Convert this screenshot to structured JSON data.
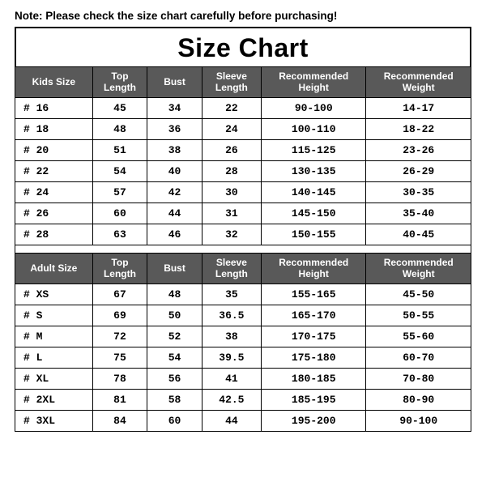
{
  "note": "Note: Please check the size chart carefully before purchasing!",
  "title": "Size Chart",
  "columns_kids": [
    "Kids Size",
    "Top Length",
    "Bust",
    "Sleeve Length",
    "Recommended Height",
    "Recommended Weight"
  ],
  "columns_adult": [
    "Adult Size",
    "Top Length",
    "Bust",
    "Sleeve Length",
    "Recommended Height",
    "Recommended Weight"
  ],
  "kids_rows": [
    {
      "size": "# 16",
      "top": "45",
      "bust": "34",
      "sleeve": "22",
      "height": "90-100",
      "weight": "14-17"
    },
    {
      "size": "# 18",
      "top": "48",
      "bust": "36",
      "sleeve": "24",
      "height": "100-110",
      "weight": "18-22"
    },
    {
      "size": "# 20",
      "top": "51",
      "bust": "38",
      "sleeve": "26",
      "height": "115-125",
      "weight": "23-26"
    },
    {
      "size": "# 22",
      "top": "54",
      "bust": "40",
      "sleeve": "28",
      "height": "130-135",
      "weight": "26-29"
    },
    {
      "size": "# 24",
      "top": "57",
      "bust": "42",
      "sleeve": "30",
      "height": "140-145",
      "weight": "30-35"
    },
    {
      "size": "# 26",
      "top": "60",
      "bust": "44",
      "sleeve": "31",
      "height": "145-150",
      "weight": "35-40"
    },
    {
      "size": "# 28",
      "top": "63",
      "bust": "46",
      "sleeve": "32",
      "height": "150-155",
      "weight": "40-45"
    }
  ],
  "adult_rows": [
    {
      "size": "# XS",
      "top": "67",
      "bust": "48",
      "sleeve": "35",
      "height": "155-165",
      "weight": "45-50"
    },
    {
      "size": "# S",
      "top": "69",
      "bust": "50",
      "sleeve": "36.5",
      "height": "165-170",
      "weight": "50-55"
    },
    {
      "size": "# M",
      "top": "72",
      "bust": "52",
      "sleeve": "38",
      "height": "170-175",
      "weight": "55-60"
    },
    {
      "size": "# L",
      "top": "75",
      "bust": "54",
      "sleeve": "39.5",
      "height": "175-180",
      "weight": "60-70"
    },
    {
      "size": "# XL",
      "top": "78",
      "bust": "56",
      "sleeve": "41",
      "height": "180-185",
      "weight": "70-80"
    },
    {
      "size": "# 2XL",
      "top": "81",
      "bust": "58",
      "sleeve": "42.5",
      "height": "185-195",
      "weight": "80-90"
    },
    {
      "size": "# 3XL",
      "top": "84",
      "bust": "60",
      "sleeve": "44",
      "height": "195-200",
      "weight": "90-100"
    }
  ],
  "style": {
    "header_bg": "#595959",
    "header_fg": "#ffffff",
    "border_color": "#000000",
    "background": "#ffffff",
    "title_fontsize": 32,
    "note_fontsize": 13.5,
    "cell_fontsize": 13,
    "header_fontsize": 12,
    "cell_font": "Courier New",
    "col_widths_pct": [
      17,
      12,
      12,
      13,
      23,
      23
    ]
  }
}
